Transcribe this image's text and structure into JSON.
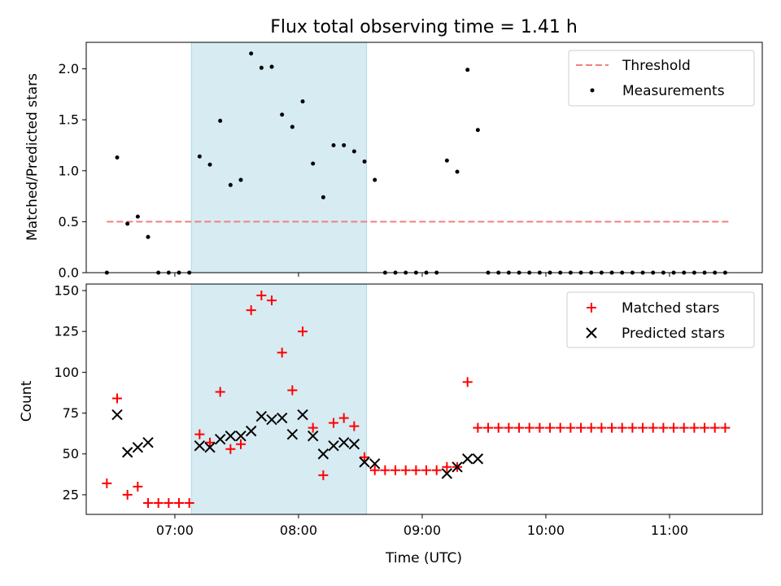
{
  "chart_data": {
    "title": "Flux total observing time = 1.41 h",
    "xlabel": "Time (UTC)",
    "x_ticks": [
      "07:00",
      "08:00",
      "09:00",
      "10:00",
      "11:00"
    ],
    "x_range": [
      "06:17",
      "11:45"
    ],
    "highlight_span": {
      "start": "07:08",
      "end": "08:33",
      "color": "#add8e6"
    },
    "panels": [
      {
        "type": "scatter",
        "ylabel": "Matched/Predicted stars",
        "ylim": [
          0,
          2.26
        ],
        "y_ticks": [
          0.0,
          0.5,
          1.0,
          1.5,
          2.0
        ],
        "y_tick_labels": [
          "0.0",
          "0.5",
          "1.0",
          "1.5",
          "2.0"
        ],
        "legend_position": "top-right",
        "threshold": {
          "name": "Threshold",
          "value": 0.5,
          "x_start": "06:27",
          "x_end": "11:30",
          "color": "#f08080"
        },
        "series": [
          {
            "name": "Measurements",
            "color": "#000000",
            "marker": "dot",
            "points": [
              [
                "06:27",
                0.0
              ],
              [
                "06:32",
                1.13
              ],
              [
                "06:37",
                0.48
              ],
              [
                "06:42",
                0.55
              ],
              [
                "06:47",
                0.35
              ],
              [
                "06:52",
                0.0
              ],
              [
                "06:57",
                0.0
              ],
              [
                "07:02",
                0.0
              ],
              [
                "07:07",
                0.0
              ],
              [
                "07:12",
                1.14
              ],
              [
                "07:17",
                1.06
              ],
              [
                "07:22",
                1.49
              ],
              [
                "07:27",
                0.86
              ],
              [
                "07:32",
                0.91
              ],
              [
                "07:37",
                2.15
              ],
              [
                "07:42",
                2.01
              ],
              [
                "07:47",
                2.02
              ],
              [
                "07:52",
                1.55
              ],
              [
                "07:57",
                1.43
              ],
              [
                "08:02",
                1.68
              ],
              [
                "08:07",
                1.07
              ],
              [
                "08:12",
                0.74
              ],
              [
                "08:17",
                1.25
              ],
              [
                "08:22",
                1.25
              ],
              [
                "08:27",
                1.19
              ],
              [
                "08:32",
                1.09
              ],
              [
                "08:37",
                0.91
              ],
              [
                "08:42",
                0.0
              ],
              [
                "08:47",
                0.0
              ],
              [
                "08:52",
                0.0
              ],
              [
                "08:57",
                0.0
              ],
              [
                "09:02",
                0.0
              ],
              [
                "09:07",
                0.0
              ],
              [
                "09:12",
                1.1
              ],
              [
                "09:17",
                0.99
              ],
              [
                "09:22",
                1.99
              ],
              [
                "09:27",
                1.4
              ],
              [
                "09:32",
                0.0
              ],
              [
                "09:37",
                0.0
              ],
              [
                "09:42",
                0.0
              ],
              [
                "09:47",
                0.0
              ],
              [
                "09:52",
                0.0
              ],
              [
                "09:57",
                0.0
              ],
              [
                "10:02",
                0.0
              ],
              [
                "10:07",
                0.0
              ],
              [
                "10:12",
                0.0
              ],
              [
                "10:17",
                0.0
              ],
              [
                "10:22",
                0.0
              ],
              [
                "10:27",
                0.0
              ],
              [
                "10:32",
                0.0
              ],
              [
                "10:37",
                0.0
              ],
              [
                "10:42",
                0.0
              ],
              [
                "10:47",
                0.0
              ],
              [
                "10:52",
                0.0
              ],
              [
                "10:57",
                0.0
              ],
              [
                "11:02",
                0.0
              ],
              [
                "11:07",
                0.0
              ],
              [
                "11:12",
                0.0
              ],
              [
                "11:17",
                0.0
              ],
              [
                "11:22",
                0.0
              ],
              [
                "11:27",
                0.0
              ]
            ]
          }
        ]
      },
      {
        "type": "scatter",
        "ylabel": "Count",
        "ylim": [
          13,
          154
        ],
        "y_ticks": [
          25,
          50,
          75,
          100,
          125,
          150
        ],
        "y_tick_labels": [
          "25",
          "50",
          "75",
          "100",
          "125",
          "150"
        ],
        "legend_position": "top-right",
        "series": [
          {
            "name": "Matched stars",
            "color": "#ff0000",
            "marker": "plus",
            "points": [
              [
                "06:27",
                32
              ],
              [
                "06:32",
                84
              ],
              [
                "06:37",
                25
              ],
              [
                "06:42",
                30
              ],
              [
                "06:47",
                20
              ],
              [
                "06:52",
                20
              ],
              [
                "06:57",
                20
              ],
              [
                "07:02",
                20
              ],
              [
                "07:07",
                20
              ],
              [
                "07:12",
                62
              ],
              [
                "07:17",
                57
              ],
              [
                "07:22",
                88
              ],
              [
                "07:27",
                53
              ],
              [
                "07:32",
                56
              ],
              [
                "07:37",
                138
              ],
              [
                "07:42",
                147
              ],
              [
                "07:47",
                144
              ],
              [
                "07:52",
                112
              ],
              [
                "07:57",
                89
              ],
              [
                "08:02",
                125
              ],
              [
                "08:07",
                66
              ],
              [
                "08:12",
                37
              ],
              [
                "08:17",
                69
              ],
              [
                "08:22",
                72
              ],
              [
                "08:27",
                67
              ],
              [
                "08:32",
                48
              ],
              [
                "08:37",
                40
              ],
              [
                "08:42",
                40
              ],
              [
                "08:47",
                40
              ],
              [
                "08:52",
                40
              ],
              [
                "08:57",
                40
              ],
              [
                "09:02",
                40
              ],
              [
                "09:07",
                40
              ],
              [
                "09:12",
                42
              ],
              [
                "09:17",
                42
              ],
              [
                "09:22",
                94
              ],
              [
                "09:27",
                66
              ],
              [
                "09:32",
                66
              ],
              [
                "09:37",
                66
              ],
              [
                "09:42",
                66
              ],
              [
                "09:47",
                66
              ],
              [
                "09:52",
                66
              ],
              [
                "09:57",
                66
              ],
              [
                "10:02",
                66
              ],
              [
                "10:07",
                66
              ],
              [
                "10:12",
                66
              ],
              [
                "10:17",
                66
              ],
              [
                "10:22",
                66
              ],
              [
                "10:27",
                66
              ],
              [
                "10:32",
                66
              ],
              [
                "10:37",
                66
              ],
              [
                "10:42",
                66
              ],
              [
                "10:47",
                66
              ],
              [
                "10:52",
                66
              ],
              [
                "10:57",
                66
              ],
              [
                "11:02",
                66
              ],
              [
                "11:07",
                66
              ],
              [
                "11:12",
                66
              ],
              [
                "11:17",
                66
              ],
              [
                "11:22",
                66
              ],
              [
                "11:27",
                66
              ]
            ]
          },
          {
            "name": "Predicted stars",
            "color": "#000000",
            "marker": "x",
            "points": [
              [
                "06:32",
                74
              ],
              [
                "06:37",
                51
              ],
              [
                "06:42",
                54
              ],
              [
                "06:47",
                57
              ],
              [
                "07:12",
                55
              ],
              [
                "07:17",
                54
              ],
              [
                "07:22",
                59
              ],
              [
                "07:27",
                61
              ],
              [
                "07:32",
                61
              ],
              [
                "07:37",
                64
              ],
              [
                "07:42",
                73
              ],
              [
                "07:47",
                71
              ],
              [
                "07:52",
                72
              ],
              [
                "07:57",
                62
              ],
              [
                "08:02",
                74
              ],
              [
                "08:07",
                61
              ],
              [
                "08:12",
                50
              ],
              [
                "08:17",
                55
              ],
              [
                "08:22",
                57
              ],
              [
                "08:27",
                56
              ],
              [
                "08:32",
                45
              ],
              [
                "08:37",
                44
              ],
              [
                "09:12",
                38
              ],
              [
                "09:17",
                42
              ],
              [
                "09:22",
                47
              ],
              [
                "09:27",
                47
              ]
            ]
          }
        ]
      }
    ]
  }
}
